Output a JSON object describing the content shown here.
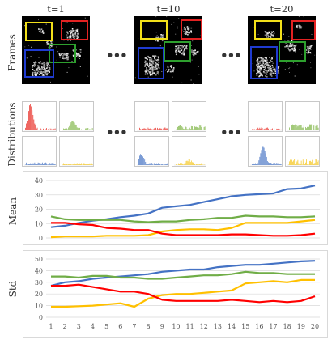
{
  "time_labels": [
    "t=1",
    "t=10",
    "t=20"
  ],
  "row_labels": {
    "frames": "Frames",
    "distributions": "Distributions",
    "mean": "Mean",
    "std": "Std"
  },
  "ellipsis": "•••",
  "box_colors": {
    "yellow": "#f2e01a",
    "red": "#e32222",
    "green": "#2ea02e",
    "blue": "#1f3bd1"
  },
  "hist_colors": {
    "red": "#e8261e",
    "green": "#7cb342",
    "blue": "#4472c4",
    "yellow": "#f5c518"
  },
  "chart_data": [
    {
      "type": "line",
      "ylabel": "Mean",
      "x": [
        1,
        2,
        3,
        4,
        5,
        6,
        7,
        8,
        9,
        10,
        11,
        12,
        13,
        14,
        15,
        16,
        17,
        18,
        19,
        20
      ],
      "ylim": [
        0,
        40
      ],
      "yticks": [
        0,
        10,
        20,
        30,
        40
      ],
      "grid": true,
      "series": [
        {
          "color": "#4472c4",
          "values": [
            7.5,
            8.5,
            10.5,
            12,
            13,
            14.5,
            15.5,
            17,
            21,
            22,
            23,
            25,
            27,
            29,
            30,
            30.5,
            31,
            34,
            34.5,
            36.5
          ]
        },
        {
          "color": "#70ad47",
          "values": [
            15,
            13,
            12.5,
            12.5,
            12.5,
            12.5,
            11.5,
            11,
            11.5,
            11.5,
            12.5,
            13,
            14,
            14,
            15.5,
            15,
            15,
            14.5,
            14.5,
            15
          ]
        },
        {
          "color": "#ffc000",
          "values": [
            0.5,
            1,
            1,
            1,
            1.5,
            1.5,
            1.5,
            2,
            4.5,
            5.5,
            6,
            6,
            5.5,
            7,
            10.5,
            10.5,
            10.5,
            10.5,
            11.5,
            12.5
          ]
        },
        {
          "color": "#ff0000",
          "values": [
            10.5,
            10.5,
            9.5,
            9,
            7,
            6.5,
            5.5,
            5.5,
            3,
            2,
            2,
            2,
            2,
            2.5,
            2.5,
            2,
            1.5,
            1.5,
            2,
            3
          ]
        }
      ]
    },
    {
      "type": "line",
      "ylabel": "Std",
      "x": [
        1,
        2,
        3,
        4,
        5,
        6,
        7,
        8,
        9,
        10,
        11,
        12,
        13,
        14,
        15,
        16,
        17,
        18,
        19,
        20
      ],
      "xticks": [
        1,
        2,
        3,
        4,
        5,
        6,
        7,
        8,
        9,
        10,
        11,
        12,
        13,
        14,
        15,
        16,
        17,
        18,
        19,
        20
      ],
      "ylim": [
        0,
        50
      ],
      "yticks": [
        0,
        10,
        20,
        30,
        40,
        50
      ],
      "grid": true,
      "series": [
        {
          "color": "#4472c4",
          "values": [
            27,
            30,
            31,
            33,
            34,
            35,
            36,
            37,
            39,
            40,
            41,
            41,
            43,
            44,
            45,
            45,
            46,
            47,
            48,
            48.5
          ]
        },
        {
          "color": "#70ad47",
          "values": [
            35,
            35,
            34,
            35.5,
            35.5,
            34,
            34,
            33,
            33,
            34,
            35,
            36,
            36,
            37,
            39,
            38,
            38,
            37,
            37,
            37
          ]
        },
        {
          "color": "#ffc000",
          "values": [
            9,
            9,
            9.5,
            10,
            11,
            12,
            9,
            16,
            19,
            20,
            20,
            21,
            22,
            23,
            29,
            30,
            31,
            30,
            32,
            32
          ]
        },
        {
          "color": "#ff0000",
          "values": [
            27,
            27,
            28,
            26,
            24,
            22,
            22,
            20,
            15,
            14,
            14,
            14,
            14,
            15,
            14,
            13,
            14,
            13,
            14,
            18
          ]
        }
      ]
    }
  ]
}
